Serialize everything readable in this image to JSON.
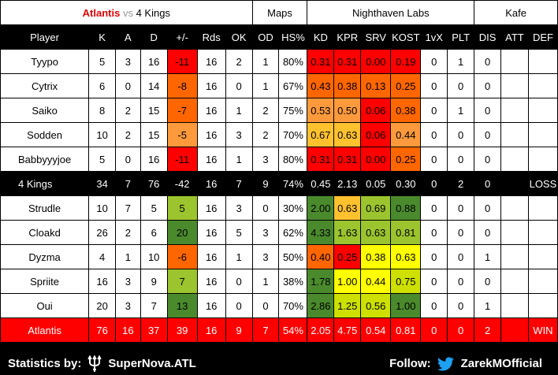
{
  "header": {
    "team_a": "Atlantis",
    "vs": "vs",
    "team_b": "4 Kings",
    "maps_label": "Maps",
    "map1": "Nighthaven Labs",
    "map2": "Kafe"
  },
  "columns": [
    "Player",
    "K",
    "A",
    "D",
    "+/-",
    "Rds",
    "OK",
    "OD",
    "HS%",
    "KD",
    "KPR",
    "SRV",
    "KOST",
    "1vX",
    "PLT",
    "DIS",
    "ATT",
    "DEF"
  ],
  "colors": {
    "red": "#ff0000",
    "orange_red": "#ff6600",
    "orange": "#ff9a3c",
    "light_orange": "#ffc12e",
    "yellow": "#ffff00",
    "light_green": "#cde000",
    "mid_green": "#9bc42e",
    "dark_green": "#4a8a2c",
    "header_black": "#000000"
  },
  "team_b_players": [
    {
      "name": "Tyypo",
      "k": "5",
      "a": "3",
      "d": "16",
      "pm": "-11",
      "rds": "16",
      "ok": "2",
      "od": "1",
      "hs": "80%",
      "kd": "0.31",
      "kpr": "0.31",
      "srv": "0.00",
      "kost": "0.19",
      "v1x": "0",
      "plt": "1",
      "dis": "0",
      "att": "",
      "def": ""
    },
    {
      "name": "Cytrix",
      "k": "6",
      "a": "0",
      "d": "14",
      "pm": "-8",
      "rds": "16",
      "ok": "0",
      "od": "1",
      "hs": "67%",
      "kd": "0.43",
      "kpr": "0.38",
      "srv": "0.13",
      "kost": "0.25",
      "v1x": "0",
      "plt": "0",
      "dis": "0",
      "att": "",
      "def": ""
    },
    {
      "name": "Saiko",
      "k": "8",
      "a": "2",
      "d": "15",
      "pm": "-7",
      "rds": "16",
      "ok": "1",
      "od": "2",
      "hs": "75%",
      "kd": "0.53",
      "kpr": "0.50",
      "srv": "0.06",
      "kost": "0.38",
      "v1x": "0",
      "plt": "1",
      "dis": "0",
      "att": "",
      "def": ""
    },
    {
      "name": "Sodden",
      "k": "10",
      "a": "2",
      "d": "15",
      "pm": "-5",
      "rds": "16",
      "ok": "3",
      "od": "2",
      "hs": "70%",
      "kd": "0.67",
      "kpr": "0.63",
      "srv": "0.06",
      "kost": "0.44",
      "v1x": "0",
      "plt": "0",
      "dis": "0",
      "att": "",
      "def": ""
    },
    {
      "name": "Babbyyyjoe",
      "k": "5",
      "a": "0",
      "d": "16",
      "pm": "-11",
      "rds": "16",
      "ok": "1",
      "od": "3",
      "hs": "80%",
      "kd": "0.31",
      "kpr": "0.31",
      "srv": "0.00",
      "kost": "0.25",
      "v1x": "0",
      "plt": "0",
      "dis": "0",
      "att": "",
      "def": ""
    }
  ],
  "team_b_total": {
    "name": "4 Kings",
    "k": "34",
    "a": "7",
    "d": "76",
    "pm": "-42",
    "rds": "16",
    "ok": "7",
    "od": "9",
    "hs": "74%",
    "kd": "0.45",
    "kpr": "2.13",
    "srv": "0.05",
    "kost": "0.30",
    "v1x": "0",
    "plt": "2",
    "dis": "0",
    "att": "",
    "def": "LOSS"
  },
  "team_a_players": [
    {
      "name": "Strudle",
      "k": "10",
      "a": "7",
      "d": "5",
      "pm": "5",
      "rds": "16",
      "ok": "3",
      "od": "0",
      "hs": "30%",
      "kd": "2.00",
      "kpr": "0.63",
      "srv": "0.69",
      "kost": "0.88",
      "v1x": "0",
      "plt": "0",
      "dis": "0",
      "att": "",
      "def": ""
    },
    {
      "name": "Cloakd",
      "k": "26",
      "a": "2",
      "d": "6",
      "pm": "20",
      "rds": "16",
      "ok": "5",
      "od": "3",
      "hs": "62%",
      "kd": "4.33",
      "kpr": "1.63",
      "srv": "0.63",
      "kost": "0.81",
      "v1x": "0",
      "plt": "0",
      "dis": "0",
      "att": "",
      "def": ""
    },
    {
      "name": "Dyzma",
      "k": "4",
      "a": "1",
      "d": "10",
      "pm": "-6",
      "rds": "16",
      "ok": "1",
      "od": "3",
      "hs": "50%",
      "kd": "0.40",
      "kpr": "0.25",
      "srv": "0.38",
      "kost": "0.63",
      "v1x": "0",
      "plt": "0",
      "dis": "1",
      "att": "",
      "def": ""
    },
    {
      "name": "Spriite",
      "k": "16",
      "a": "3",
      "d": "9",
      "pm": "7",
      "rds": "16",
      "ok": "0",
      "od": "1",
      "hs": "38%",
      "kd": "1.78",
      "kpr": "1.00",
      "srv": "0.44",
      "kost": "0.75",
      "v1x": "0",
      "plt": "0",
      "dis": "0",
      "att": "",
      "def": ""
    },
    {
      "name": "Oui",
      "k": "20",
      "a": "3",
      "d": "7",
      "pm": "13",
      "rds": "16",
      "ok": "0",
      "od": "0",
      "hs": "70%",
      "kd": "2.86",
      "kpr": "1.25",
      "srv": "0.56",
      "kost": "1.00",
      "v1x": "0",
      "plt": "0",
      "dis": "1",
      "att": "",
      "def": ""
    }
  ],
  "team_a_total": {
    "name": "Atlantis",
    "k": "76",
    "a": "16",
    "d": "37",
    "pm": "39",
    "rds": "16",
    "ok": "9",
    "od": "7",
    "hs": "54%",
    "kd": "2.05",
    "kpr": "4.75",
    "srv": "0.54",
    "kost": "0.81",
    "v1x": "0",
    "plt": "0",
    "dis": "2",
    "att": "",
    "def": "WIN"
  },
  "footer": {
    "stats_label": "Statistics by:",
    "stats_source": "SuperNova.ATL",
    "follow_label": "Follow:",
    "handle": "ZarekMOfficial",
    "trident_icon": "trident-icon",
    "bird_icon": "twitter-bird-icon"
  }
}
